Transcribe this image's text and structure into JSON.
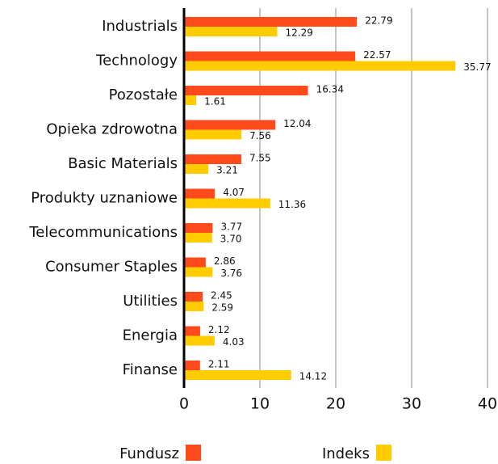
{
  "chart_data": {
    "type": "bar",
    "orientation": "horizontal",
    "categories": [
      "Industrials",
      "Technology",
      "Pozostałe",
      "Opieka zdrowotna",
      "Basic Materials",
      "Produkty uznaniowe",
      "Telecommunications",
      "Consumer Staples",
      "Utilities",
      "Energia",
      "Finanse"
    ],
    "series": [
      {
        "name": "Fundusz",
        "color": "#ff4a1c",
        "values": [
          22.79,
          22.57,
          16.34,
          12.04,
          7.55,
          4.07,
          3.77,
          2.86,
          2.45,
          2.12,
          2.11
        ],
        "value_labels": [
          "22.79",
          "22.57",
          "16.34",
          "12.04",
          "7.55",
          "4.07",
          "3.77",
          "2.86",
          "2.45",
          "2.12",
          "2.11"
        ]
      },
      {
        "name": "Indeks",
        "color": "#ffcc00",
        "values": [
          12.29,
          35.77,
          1.61,
          7.56,
          3.21,
          11.36,
          3.7,
          3.76,
          2.59,
          4.03,
          14.12
        ],
        "value_labels": [
          "12.29",
          "35.77",
          "1.61",
          "7.56",
          "3.21",
          "11.36",
          "3.70",
          "3.76",
          "2.59",
          "4.03",
          "14.12"
        ]
      }
    ],
    "xlim": [
      0,
      40
    ],
    "xticks": [
      0,
      10,
      20,
      30,
      40
    ],
    "grid": true,
    "legend": "bottom"
  }
}
